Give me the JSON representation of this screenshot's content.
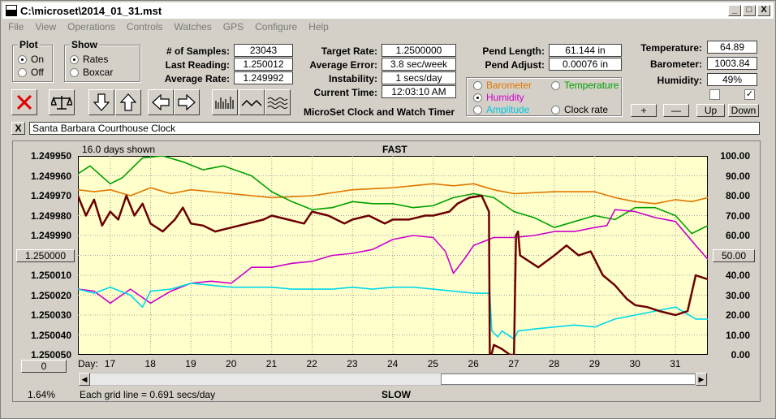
{
  "window": {
    "title": "C:\\microset\\2014_01_31.mst",
    "minimize": "_",
    "maximize": "□",
    "close": "X"
  },
  "menu": [
    "File",
    "View",
    "Operations",
    "Controls",
    "Watches",
    "GPS",
    "Configure",
    "Help"
  ],
  "plot_group": {
    "title": "Plot",
    "options": [
      "On",
      "Off"
    ],
    "selected": "On"
  },
  "show_group": {
    "title": "Show",
    "options": [
      "Rates",
      "Boxcar"
    ],
    "selected": "Rates"
  },
  "stats": {
    "samples_label": "# of Samples:",
    "samples": "23043",
    "last_reading_label": "Last Reading:",
    "last_reading": "1.250012",
    "average_rate_label": "Average Rate:",
    "average_rate": "1.249992",
    "target_rate_label": "Target Rate:",
    "target_rate": "1.2500000",
    "avg_error_label": "Average Error:",
    "avg_error": "3.8 sec/week",
    "instability_label": "Instability:",
    "instability": "1 secs/day",
    "current_time_label": "Current Time:",
    "current_time": "12:03:10 AM",
    "app_label": "MicroSet Clock and Watch Timer",
    "pend_length_label": "Pend Length:",
    "pend_length": "61.144 in",
    "pend_adjust_label": "Pend Adjust:",
    "pend_adjust": "0.00076 in",
    "temperature_label": "Temperature:",
    "temperature": "64.89",
    "barometer_label": "Barometer:",
    "barometer": "1003.84",
    "humidity_label": "Humidity:",
    "humidity": "49%"
  },
  "sensor_select": {
    "options": [
      {
        "label": "Barometer",
        "color": "#e07800",
        "selected": false
      },
      {
        "label": "Temperature",
        "color": "#00a000",
        "selected": false
      },
      {
        "label": "Humidity",
        "color": "#cc00cc",
        "selected": true
      },
      {
        "label": "Clock rate",
        "color": "#000000",
        "selected": false
      },
      {
        "label": "Amplitude",
        "color": "#00c8e0",
        "selected": false
      }
    ]
  },
  "checkboxes": [
    {
      "checked": false
    },
    {
      "checked": true
    }
  ],
  "scale_buttons": {
    "plus": "+",
    "minus": "—",
    "up": "Up",
    "down": "Down"
  },
  "icons": [
    "stop-icon",
    "balance-icon",
    "arrow-down-icon",
    "arrow-up-icon",
    "arrow-left-icon",
    "arrow-right-icon",
    "bars-icon",
    "wave-icon",
    "noise-icon"
  ],
  "clock_name": "Santa Barbara Courthouse Clock",
  "close_x": "X",
  "chart_data": {
    "type": "line",
    "title": "FAST",
    "subtitle": "16.0 days shown",
    "bottom_label": "SLOW",
    "grid_note": "Each grid line = 0.691 secs/day",
    "x_prefix": "Day:",
    "x_ticks": [
      "17",
      "18",
      "19",
      "20",
      "21",
      "22",
      "23",
      "24",
      "25",
      "26",
      "27",
      "28",
      "29",
      "30",
      "31"
    ],
    "x_range": [
      16.2,
      31.8
    ],
    "left_ticks": [
      "1.249950",
      "1.249960",
      "1.249970",
      "1.249980",
      "1.249990",
      "1.250000",
      "1.250010",
      "1.250020",
      "1.250030",
      "1.250040",
      "1.250050"
    ],
    "left_center_button": "1.250000",
    "left_bottom_button": "0",
    "left_percent": "1.64%",
    "right_ticks": [
      "100.00",
      "90.00",
      "80.00",
      "70.00",
      "60.00",
      "50.00",
      "40.00",
      "30.00",
      "20.00",
      "10.00",
      "0.00"
    ],
    "right_center_button": "50.00",
    "y_range": [
      0,
      100
    ],
    "background": "#ffffcc",
    "series": [
      {
        "color": "#e07800",
        "x": [
          16.2,
          16.6,
          17.0,
          17.5,
          18.0,
          18.5,
          19.0,
          20.0,
          21.0,
          22.0,
          23.0,
          24.0,
          25.0,
          25.5,
          26.0,
          26.5,
          27.0,
          28.0,
          29.0,
          29.5,
          30.0,
          30.5,
          31.0,
          31.4,
          31.8
        ],
        "values": [
          83,
          82,
          83,
          80,
          84,
          81,
          83,
          81,
          79,
          80,
          83,
          84,
          86,
          85,
          86,
          83,
          81,
          82,
          82,
          79,
          77,
          76,
          78,
          77,
          79
        ]
      },
      {
        "color": "#00a000",
        "x": [
          16.2,
          16.5,
          17.0,
          17.3,
          17.8,
          18.3,
          18.8,
          19.3,
          19.8,
          20.5,
          21.0,
          21.5,
          22.0,
          22.5,
          23.0,
          23.5,
          24.0,
          24.5,
          25.0,
          25.5,
          26.0,
          26.5,
          27.0,
          27.5,
          28.0,
          28.5,
          29.0,
          29.5,
          30.0,
          30.5,
          31.0,
          31.4,
          31.8
        ],
        "values": [
          91,
          95,
          86,
          89,
          99,
          100,
          97,
          93,
          95,
          90,
          82,
          77,
          73,
          74,
          77,
          76,
          76,
          74,
          75,
          79,
          81,
          79,
          72,
          69,
          64,
          67,
          70,
          68,
          74,
          74,
          70,
          61,
          65
        ]
      },
      {
        "color": "#cc00cc",
        "x": [
          16.2,
          16.6,
          17.0,
          17.5,
          18.0,
          18.5,
          19.0,
          19.5,
          20.0,
          20.5,
          21.0,
          21.5,
          22.0,
          22.5,
          23.0,
          23.5,
          24.0,
          24.5,
          25.0,
          25.3,
          25.5,
          25.8,
          26.0,
          26.5,
          27.0,
          27.5,
          28.0,
          28.5,
          29.0,
          29.3,
          29.5,
          30.0,
          30.5,
          31.0,
          31.5,
          31.8
        ],
        "values": [
          33,
          32,
          26,
          33,
          26,
          32,
          36,
          37,
          36,
          44,
          44,
          46,
          47,
          50,
          51,
          53,
          58,
          60,
          59,
          52,
          41,
          49,
          55,
          59,
          59,
          60,
          62,
          62,
          64,
          65,
          73,
          72,
          69,
          67,
          55,
          48
        ]
      },
      {
        "color": "#00d8e8",
        "x": [
          16.2,
          16.6,
          17.0,
          17.5,
          17.8,
          18.0,
          18.5,
          19.0,
          19.5,
          20.0,
          20.5,
          21.0,
          21.5,
          22.0,
          22.5,
          23.0,
          23.5,
          24.0,
          24.5,
          25.0,
          25.5,
          26.0,
          26.4,
          26.45,
          26.6,
          26.7,
          27.0,
          27.1,
          27.5,
          28.0,
          28.5,
          29.0,
          29.5,
          30.0,
          30.5,
          31.0,
          31.5,
          31.8
        ],
        "values": [
          33,
          31,
          34,
          30,
          24,
          32,
          33,
          36,
          35,
          34,
          34,
          34,
          33,
          33,
          33,
          34,
          33,
          34,
          34,
          33,
          32,
          31,
          31,
          12,
          9,
          12,
          8,
          12,
          13,
          14,
          15,
          14,
          18,
          20,
          22,
          24,
          18,
          18
        ]
      },
      {
        "color": "#6b0000",
        "x": [
          16.2,
          16.4,
          16.6,
          16.8,
          17.0,
          17.2,
          17.4,
          17.6,
          17.8,
          18.0,
          18.3,
          18.6,
          18.8,
          19.0,
          19.3,
          19.6,
          20.0,
          20.4,
          20.8,
          21.0,
          21.4,
          21.8,
          22.0,
          22.4,
          22.8,
          23.0,
          23.4,
          23.8,
          24.0,
          24.4,
          24.8,
          25.0,
          25.4,
          25.6,
          25.9,
          26.2,
          26.38,
          26.4,
          26.44,
          26.5,
          26.7,
          26.9,
          27.0,
          27.05,
          27.1,
          27.15,
          27.3,
          27.6,
          27.8,
          28.0,
          28.3,
          28.6,
          28.9,
          29.2,
          29.5,
          29.8,
          30.0,
          30.3,
          30.6,
          31.0,
          31.3,
          31.5,
          31.8
        ],
        "values": [
          80,
          70,
          78,
          65,
          72,
          68,
          80,
          70,
          76,
          66,
          62,
          68,
          74,
          66,
          65,
          62,
          64,
          66,
          68,
          70,
          68,
          66,
          72,
          70,
          66,
          68,
          70,
          66,
          68,
          68,
          70,
          70,
          72,
          76,
          79,
          80,
          72,
          0,
          0,
          5,
          3,
          0,
          0,
          60,
          62,
          50,
          48,
          44,
          47,
          50,
          55,
          50,
          52,
          40,
          35,
          28,
          25,
          24,
          22,
          20,
          22,
          40,
          38
        ]
      }
    ]
  }
}
